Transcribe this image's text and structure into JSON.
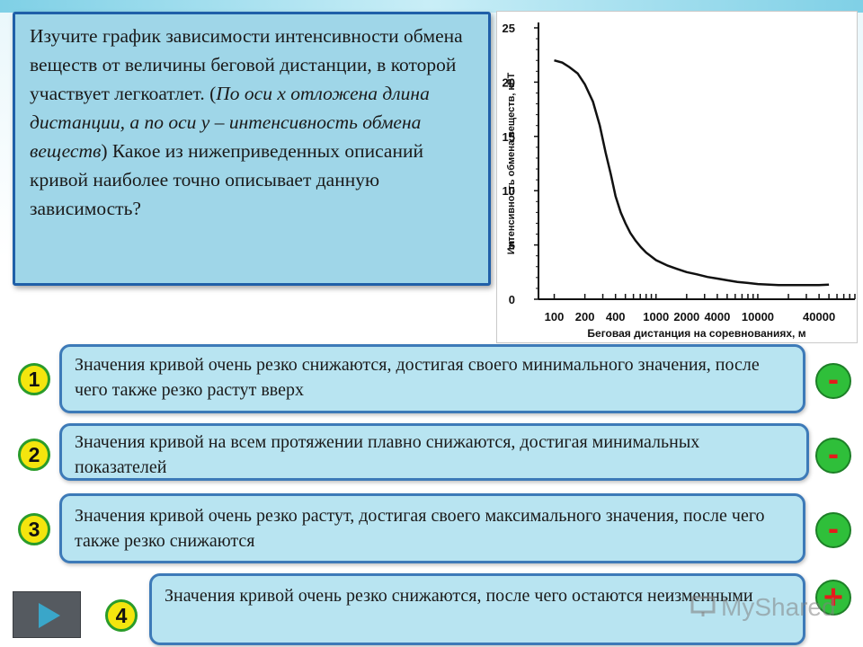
{
  "question": {
    "part1": "Изучите график зависимости интенсивности обмена веществ от величины беговой дистанции, в которой участвует легкоатлет. (",
    "italic": "По оси х отложена длина дистанции, а по оси у – интенсивность обмена веществ",
    "part2": ") Какое из нижеприведенных описаний кривой наиболее точно описывает данную зависимость?"
  },
  "chart_data": {
    "type": "line",
    "xlabel": "Беговая дистанция на соревнованиях, м",
    "ylabel": "Интенсивность обмена веществ, кВТ",
    "x_tick_labels": [
      "100",
      "200",
      "400",
      "1000",
      "2000",
      "4000",
      "10000",
      "40000"
    ],
    "y_ticks": [
      0,
      5,
      10,
      15,
      20,
      25
    ],
    "ylim": [
      0,
      25
    ],
    "x_scale": "log",
    "series": [
      {
        "x": [
          100,
          120,
          140,
          170,
          200,
          240,
          280,
          320,
          360,
          400,
          450,
          500,
          560,
          630,
          710,
          800,
          1000,
          1300,
          1600,
          2000,
          2500,
          3200,
          4000,
          5000,
          6300,
          8000,
          10000,
          13000,
          16000,
          20000,
          25000,
          32000,
          40000,
          50000
        ],
        "y": [
          22,
          21.8,
          21.4,
          20.8,
          19.8,
          18.2,
          16,
          13.5,
          11.5,
          9.5,
          8,
          7,
          6.1,
          5.4,
          4.8,
          4.3,
          3.6,
          3.1,
          2.8,
          2.5,
          2.3,
          2.05,
          1.9,
          1.75,
          1.6,
          1.5,
          1.4,
          1.35,
          1.3,
          1.3,
          1.3,
          1.3,
          1.3,
          1.35
        ]
      }
    ],
    "grid": false
  },
  "answers": [
    {
      "number": "1",
      "text": "Значения кривой очень резко снижаются, достигая своего минимального значения, после чего также резко растут вверх",
      "mark": "-"
    },
    {
      "number": "2",
      "text": "Значения кривой на всем протяжении плавно снижаются, достигая минимальных показателей",
      "mark": "-"
    },
    {
      "number": "3",
      "text": "Значения кривой очень резко растут, достигая своего максимального значения, после чего также резко снижаются",
      "mark": "-"
    },
    {
      "number": "4",
      "text": "Значения кривой очень резко снижаются, после чего остаются неизменными",
      "mark": "+"
    }
  ],
  "watermark": {
    "text": "MyShared",
    "icon": "presentation-icon"
  },
  "nav": {
    "icon": "play-triangle-icon"
  },
  "colors": {
    "answer_fill": "#b8e4f1",
    "badge_yellow": "#f4e50e",
    "mark_green": "#2fbf3a",
    "mark_red": "#e41b1b"
  }
}
